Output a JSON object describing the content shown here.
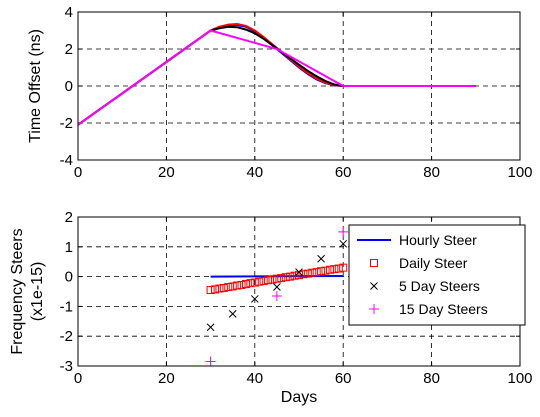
{
  "chart_data": [
    {
      "type": "line",
      "xlabel": "",
      "ylabel": "Time Offset (ns)",
      "xlim": [
        0,
        100
      ],
      "ylim": [
        -4,
        4
      ],
      "xticks": [
        "0",
        "20",
        "40",
        "60",
        "80",
        "100"
      ],
      "yticks": [
        "-4",
        "-2",
        "0",
        "2",
        "4"
      ],
      "grid": true,
      "series": [
        {
          "color": "#0000ff",
          "x": [
            0,
            5,
            10,
            15,
            20,
            25,
            30,
            32,
            34,
            36,
            38,
            40,
            42,
            44,
            46,
            48,
            50,
            52,
            54,
            56,
            58,
            60,
            65,
            70,
            75,
            80,
            85,
            90
          ],
          "y": [
            -2.1,
            -1.25,
            -0.4,
            0.45,
            1.3,
            2.15,
            3.0,
            3.2,
            3.3,
            3.3,
            3.2,
            2.95,
            2.6,
            2.2,
            1.8,
            1.4,
            1.0,
            0.65,
            0.35,
            0.15,
            0.03,
            0,
            0,
            0,
            0,
            0,
            0,
            0
          ]
        },
        {
          "color": "#ff0000",
          "x": [
            0,
            5,
            10,
            15,
            20,
            25,
            30,
            32,
            34,
            36,
            38,
            40,
            42,
            44,
            46,
            48,
            50,
            52,
            54,
            56,
            58,
            60,
            65,
            70,
            75,
            80,
            85,
            90
          ],
          "y": [
            -2.1,
            -1.25,
            -0.4,
            0.45,
            1.3,
            2.15,
            3.0,
            3.2,
            3.32,
            3.35,
            3.25,
            3.0,
            2.65,
            2.25,
            1.85,
            1.45,
            1.05,
            0.7,
            0.4,
            0.18,
            0.05,
            0,
            0,
            0,
            0,
            0,
            0,
            0
          ]
        },
        {
          "color": "#000000",
          "x": [
            0,
            5,
            10,
            15,
            20,
            25,
            30,
            32,
            34,
            36,
            38,
            40,
            42,
            44,
            46,
            48,
            50,
            52,
            54,
            56,
            58,
            60,
            65,
            70,
            75,
            80,
            85,
            90
          ],
          "y": [
            -2.1,
            -1.25,
            -0.4,
            0.45,
            1.3,
            2.15,
            3.0,
            3.12,
            3.2,
            3.18,
            3.05,
            2.85,
            2.55,
            2.2,
            1.85,
            1.5,
            1.15,
            0.82,
            0.52,
            0.27,
            0.08,
            0,
            0,
            0,
            0,
            0,
            0,
            0
          ]
        },
        {
          "color": "#ff00ff",
          "x": [
            0,
            5,
            10,
            15,
            20,
            25,
            30,
            45,
            60,
            65,
            70,
            75,
            80,
            85,
            90
          ],
          "y": [
            -2.1,
            -1.25,
            -0.4,
            0.45,
            1.3,
            2.15,
            3.0,
            2.0,
            0,
            0,
            0,
            0,
            0,
            0,
            0
          ]
        }
      ]
    },
    {
      "type": "scatter",
      "xlabel": "Days",
      "ylabel": "Frequency Steers (x1e-15)",
      "xlim": [
        0,
        100
      ],
      "ylim": [
        -3,
        2
      ],
      "xticks": [
        "0",
        "20",
        "40",
        "60",
        "80",
        "100"
      ],
      "yticks": [
        "-3",
        "-2",
        "-1",
        "0",
        "1",
        "2"
      ],
      "grid": true,
      "legend_position": "top-right",
      "series": [
        {
          "name": "Hourly Steer",
          "color": "#0000ff",
          "marker": "line",
          "x": [
            30,
            60
          ],
          "y": [
            0,
            0.02
          ]
        },
        {
          "name": "Daily Steer",
          "color": "#ff0000",
          "marker": "square",
          "x": [
            30,
            31,
            32,
            33,
            34,
            35,
            36,
            37,
            38,
            39,
            40,
            41,
            42,
            43,
            44,
            45,
            46,
            47,
            48,
            49,
            50,
            51,
            52,
            53,
            54,
            55,
            56,
            57,
            58,
            59,
            60
          ],
          "y": [
            -0.45,
            -0.43,
            -0.4,
            -0.38,
            -0.35,
            -0.33,
            -0.3,
            -0.28,
            -0.25,
            -0.22,
            -0.2,
            -0.17,
            -0.15,
            -0.12,
            -0.1,
            -0.07,
            -0.05,
            -0.02,
            0,
            0.03,
            0.05,
            0.08,
            0.1,
            0.13,
            0.15,
            0.18,
            0.2,
            0.23,
            0.25,
            0.27,
            0.3
          ]
        },
        {
          "name": "5 Day Steers",
          "color": "#000000",
          "marker": "x",
          "x": [
            30,
            35,
            40,
            45,
            50,
            55,
            60
          ],
          "y": [
            -1.7,
            -1.25,
            -0.75,
            -0.35,
            0.15,
            0.6,
            1.1
          ]
        },
        {
          "name": "15 Day Steers",
          "color": "#ff00ff",
          "marker": "plus",
          "x": [
            30,
            45,
            60
          ],
          "y": [
            -2.85,
            -0.65,
            1.5
          ]
        }
      ]
    }
  ]
}
